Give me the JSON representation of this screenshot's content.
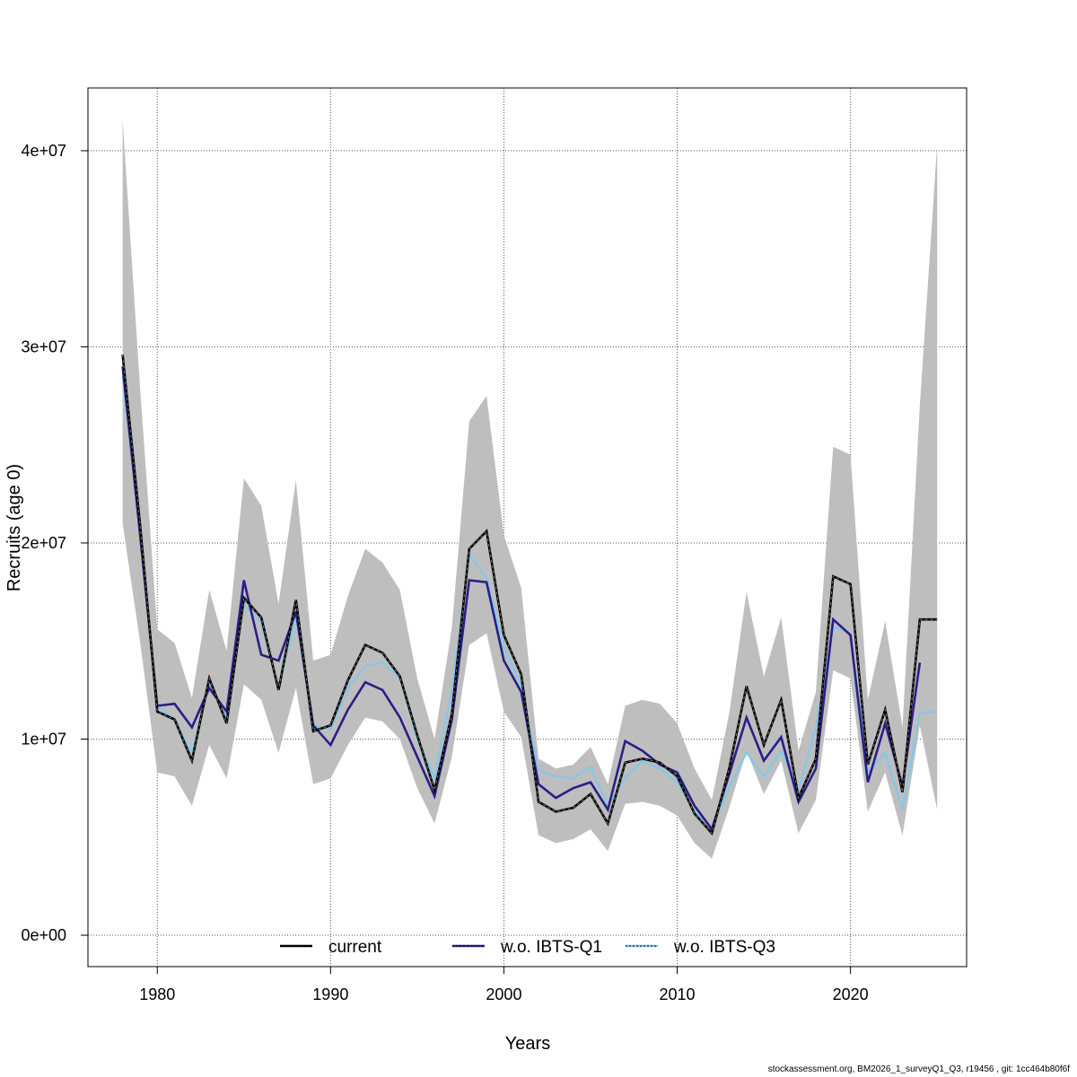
{
  "chart_data": {
    "type": "line",
    "title": "",
    "xlabel": "Years",
    "ylabel": "Recruits (age 0)",
    "xlim": [
      1976,
      2026.7
    ],
    "ylim": [
      -1600000,
      43200000
    ],
    "grid": true,
    "legend_position": "bottom",
    "x_ticks": [
      "1980",
      "1990",
      "2000",
      "2010",
      "2020"
    ],
    "y_ticks": [
      "0e+00",
      "1e+07",
      "2e+07",
      "3e+07",
      "4e+07"
    ],
    "x": [
      1978,
      1979,
      1980,
      1981,
      1982,
      1983,
      1984,
      1985,
      1986,
      1987,
      1988,
      1989,
      1990,
      1991,
      1992,
      1993,
      1994,
      1995,
      1996,
      1997,
      1998,
      1999,
      2000,
      2001,
      2002,
      2003,
      2004,
      2005,
      2006,
      2007,
      2008,
      2009,
      2010,
      2011,
      2012,
      2013,
      2014,
      2015,
      2016,
      2017,
      2018,
      2019,
      2020,
      2021,
      2022,
      2023,
      2024,
      2025
    ],
    "band": {
      "color": "#bebebe",
      "lower": [
        21.0,
        15.0,
        8.3,
        8.1,
        6.6,
        9.7,
        8.0,
        12.8,
        12.0,
        9.3,
        12.6,
        7.7,
        8.0,
        9.7,
        11.1,
        10.9,
        10.0,
        7.5,
        5.7,
        9.1,
        14.8,
        15.4,
        11.4,
        10.1,
        5.1,
        4.7,
        4.9,
        5.4,
        4.3,
        6.7,
        6.8,
        6.6,
        6.1,
        4.7,
        3.9,
        6.5,
        9.4,
        7.2,
        8.9,
        5.2,
        6.9,
        13.5,
        13.1,
        6.3,
        8.3,
        5.1,
        10.7,
        6.4
      ],
      "upper": [
        41.6,
        28.0,
        15.6,
        14.9,
        12.1,
        17.6,
        14.5,
        23.3,
        21.9,
        16.9,
        23.2,
        14.0,
        14.3,
        17.3,
        19.7,
        19.0,
        17.6,
        13.1,
        10.0,
        15.7,
        26.2,
        27.5,
        20.4,
        17.7,
        9.0,
        8.5,
        8.7,
        9.6,
        7.7,
        11.7,
        12.0,
        11.8,
        10.8,
        8.5,
        6.9,
        11.3,
        17.5,
        13.2,
        16.2,
        9.4,
        12.4,
        24.9,
        24.5,
        12.0,
        16.0,
        10.6,
        27.0,
        40.3
      ],
      "unit_multiplier": 1000000
    },
    "series": [
      {
        "name": "current",
        "color": "#000000",
        "values": [
          29.6,
          21.0,
          11.4,
          11.0,
          8.9,
          13.1,
          10.8,
          17.2,
          16.2,
          12.5,
          17.1,
          10.4,
          10.7,
          13.0,
          14.8,
          14.4,
          13.2,
          10.2,
          7.4,
          11.3,
          19.7,
          20.6,
          15.3,
          13.3,
          6.8,
          6.3,
          6.5,
          7.2,
          5.7,
          8.8,
          9.0,
          8.8,
          8.1,
          6.2,
          5.2,
          8.5,
          12.7,
          9.7,
          12.0,
          7.0,
          9.0,
          18.3,
          17.9,
          8.7,
          11.5,
          7.3,
          16.1,
          16.1
        ]
      },
      {
        "name": "w.o. IBTS-Q1",
        "color": "#2b1e88",
        "values": [
          29.0,
          20.5,
          11.7,
          11.8,
          10.6,
          12.6,
          11.4,
          18.1,
          14.3,
          14.0,
          16.5,
          10.7,
          9.7,
          11.5,
          12.9,
          12.5,
          11.1,
          9.1,
          7.1,
          11.0,
          18.1,
          18.0,
          14.0,
          12.4,
          7.7,
          7.0,
          7.5,
          7.8,
          6.4,
          9.9,
          9.4,
          8.7,
          8.3,
          6.6,
          5.4,
          8.2,
          11.1,
          8.9,
          10.1,
          6.8,
          8.5,
          16.1,
          15.3,
          7.8,
          10.8,
          7.6,
          13.9,
          null
        ]
      },
      {
        "name": "w.o. IBTS-Q3",
        "color": "#7dc9f0",
        "values": [
          28.5,
          20.5,
          11.7,
          11.0,
          9.3,
          12.8,
          11.1,
          16.9,
          15.9,
          12.6,
          16.3,
          10.7,
          10.5,
          12.6,
          13.7,
          13.9,
          13.1,
          10.0,
          8.0,
          12.5,
          19.4,
          18.2,
          14.7,
          12.7,
          8.4,
          8.1,
          8.0,
          8.6,
          6.6,
          8.0,
          8.9,
          8.5,
          7.8,
          6.3,
          5.5,
          7.5,
          9.3,
          8.1,
          9.4,
          7.4,
          10.6,
          15.7,
          15.4,
          8.3,
          9.3,
          6.4,
          11.3,
          11.4
        ]
      }
    ]
  },
  "footer": "stockassessment.org, BM2026_1_surveyQ1_Q3, r19456 , git: 1cc464b80f6f"
}
